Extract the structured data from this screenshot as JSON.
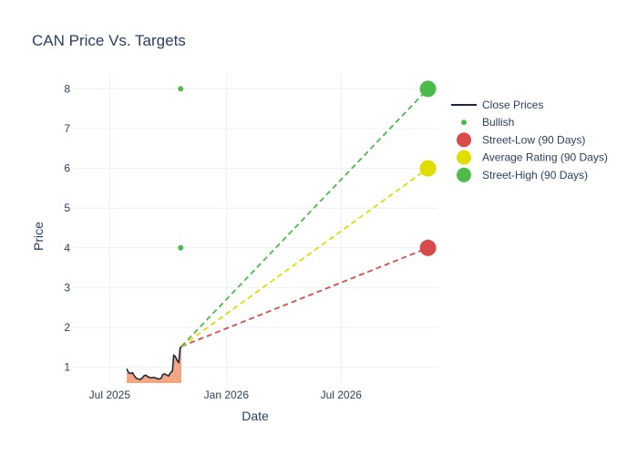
{
  "chart_data": {
    "type": "line",
    "title": "CAN Price Vs. Targets",
    "xlabel": "Date",
    "ylabel": "Price",
    "x_range": [
      "2025-05-04",
      "2026-11-30"
    ],
    "ylim": [
      0.6,
      8.4
    ],
    "x_ticks": [
      {
        "date": "2025-07-01",
        "label": "Jul 2025"
      },
      {
        "date": "2026-01-01",
        "label": "Jan 2026"
      },
      {
        "date": "2026-07-01",
        "label": "Jul 2026"
      }
    ],
    "y_ticks": [
      1,
      2,
      3,
      4,
      5,
      6,
      7,
      8
    ],
    "grid": true,
    "legend_position": "top-right",
    "series": [
      {
        "name": "Close Prices",
        "kind": "line-area",
        "color": "#1f2a38",
        "fill": "#f4a582",
        "points": [
          [
            "2025-07-28",
            0.96
          ],
          [
            "2025-07-31",
            0.86
          ],
          [
            "2025-08-03",
            0.84
          ],
          [
            "2025-08-06",
            0.86
          ],
          [
            "2025-08-09",
            0.78
          ],
          [
            "2025-08-12",
            0.72
          ],
          [
            "2025-08-15",
            0.7
          ],
          [
            "2025-08-18",
            0.69
          ],
          [
            "2025-08-21",
            0.72
          ],
          [
            "2025-08-24",
            0.78
          ],
          [
            "2025-08-27",
            0.8
          ],
          [
            "2025-08-30",
            0.76
          ],
          [
            "2025-09-02",
            0.74
          ],
          [
            "2025-09-05",
            0.73
          ],
          [
            "2025-09-08",
            0.74
          ],
          [
            "2025-09-11",
            0.73
          ],
          [
            "2025-09-14",
            0.71
          ],
          [
            "2025-09-17",
            0.7
          ],
          [
            "2025-09-20",
            0.72
          ],
          [
            "2025-09-23",
            0.82
          ],
          [
            "2025-09-26",
            0.83
          ],
          [
            "2025-09-29",
            0.8
          ],
          [
            "2025-10-02",
            0.78
          ],
          [
            "2025-10-05",
            0.86
          ],
          [
            "2025-10-08",
            0.9
          ],
          [
            "2025-10-10",
            1.3
          ],
          [
            "2025-10-12",
            1.28
          ],
          [
            "2025-10-14",
            1.22
          ],
          [
            "2025-10-16",
            1.15
          ],
          [
            "2025-10-18",
            1.12
          ],
          [
            "2025-10-20",
            1.48
          ],
          [
            "2025-10-22",
            1.52
          ]
        ]
      },
      {
        "name": "Bullish",
        "kind": "markers",
        "color": "#4cbb4c",
        "points": [
          [
            "2025-10-21",
            8
          ],
          [
            "2025-10-21",
            4
          ]
        ]
      },
      {
        "name": "Street-Low (90 Days)",
        "kind": "target",
        "color": "#d84b4b",
        "start": [
          "2025-10-22",
          1.52
        ],
        "end": [
          "2026-11-15",
          4
        ]
      },
      {
        "name": "Average Rating (90 Days)",
        "kind": "target",
        "color": "#e0dd00",
        "start": [
          "2025-10-22",
          1.52
        ],
        "end": [
          "2026-11-15",
          6
        ]
      },
      {
        "name": "Street-High (90 Days)",
        "kind": "target",
        "color": "#4cbb4c",
        "start": [
          "2025-10-22",
          1.52
        ],
        "end": [
          "2026-11-15",
          8
        ]
      }
    ]
  }
}
